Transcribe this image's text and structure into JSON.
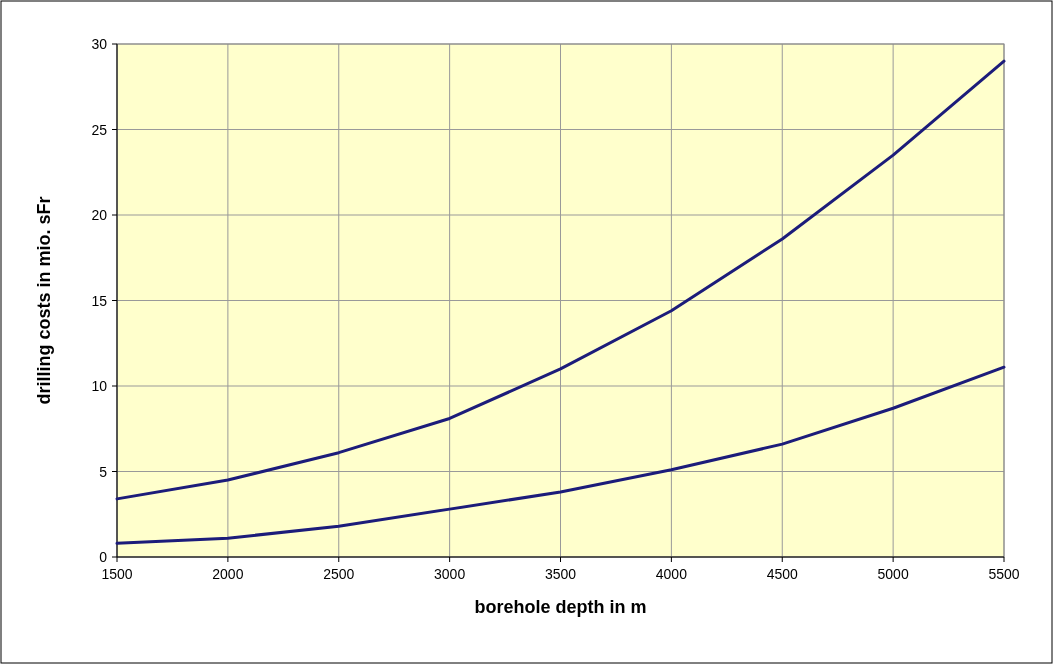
{
  "chart_data": {
    "type": "line",
    "xlabel": "borehole depth in m",
    "ylabel": "drilling costs in mio. sFr",
    "x": [
      1500,
      2000,
      2500,
      3000,
      3500,
      4000,
      4500,
      5000,
      5500
    ],
    "series": [
      {
        "color": "#1c1c7a",
        "values": [
          3.4,
          4.5,
          6.1,
          8.1,
          11.0,
          14.4,
          18.6,
          23.5,
          29.0
        ]
      },
      {
        "color": "#1c1c7a",
        "values": [
          0.8,
          1.1,
          1.8,
          2.8,
          3.8,
          5.1,
          6.6,
          8.7,
          11.1
        ]
      }
    ],
    "xlim": [
      1500,
      5500
    ],
    "xticks": [
      1500,
      2000,
      2500,
      3000,
      3500,
      4000,
      4500,
      5000,
      5500
    ],
    "ylim": [
      0,
      30
    ],
    "yticks": [
      0,
      5,
      10,
      15,
      20,
      25,
      30
    ],
    "grid": true,
    "marker": "none",
    "line_style": "solid"
  }
}
